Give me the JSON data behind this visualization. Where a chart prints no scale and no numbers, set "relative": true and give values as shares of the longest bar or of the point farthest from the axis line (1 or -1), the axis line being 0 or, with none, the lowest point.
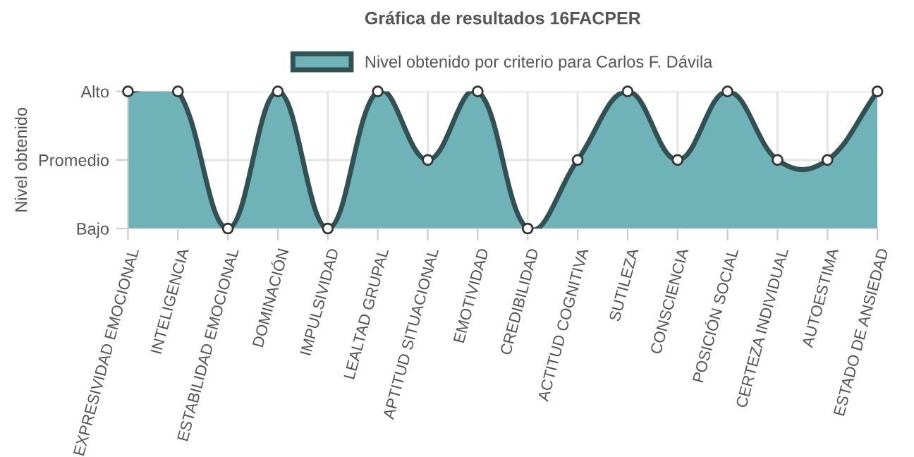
{
  "chart_data": {
    "type": "area",
    "title": "Gráfica de resultados 16FACPER",
    "ylabel": "Nivel obtenido",
    "categories": [
      "EXPRESIVIDAD EMOCIONAL",
      "INTELIGENCIA",
      "ESTABILIDAD EMOCIONAL",
      "DOMINACIÓN",
      "IMPULSIVIDAD",
      "LEALTAD GRUPAL",
      "APTITUD SITUACIONAL",
      "EMOTIVIDAD",
      "CREDIBILIDAD",
      "ACTITUD COGNITIVA",
      "SUTILEZA",
      "CONSCIENCIA",
      "POSICIÓN SOCIAL",
      "CERTEZA INDIVIDUAL",
      "AUTOESTIMA",
      "ESTADO DE ANSIEDAD"
    ],
    "series": [
      {
        "name": "Nivel obtenido por criterio para Carlos F. Dávila",
        "color": "#6fb3b8",
        "values": [
          1,
          1,
          0,
          1,
          0,
          1,
          0.5,
          1,
          0,
          0.5,
          1,
          0.5,
          1,
          0.5,
          0.5,
          1
        ]
      }
    ],
    "relative": true,
    "y_categories": [
      "Alto",
      "Promedio",
      "Bajo"
    ],
    "grid": true,
    "legend": "top",
    "marker": "circle",
    "line_style": "solid"
  }
}
